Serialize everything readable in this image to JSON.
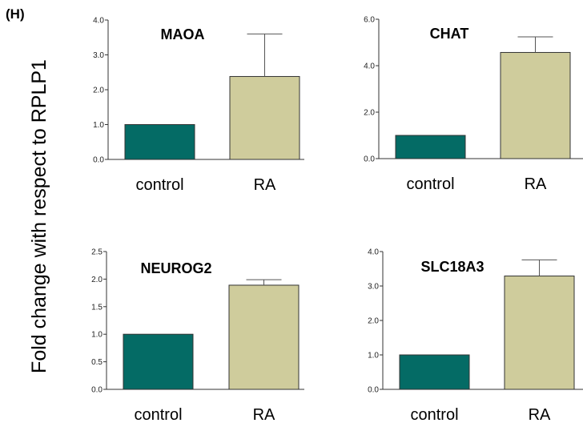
{
  "figure": {
    "panel_label": "(H)",
    "ylabel": "Fold change with respect to RPLP1"
  },
  "colors": {
    "control": "#046b65",
    "RA": "#cfcc9c",
    "bar_stroke": "#333333"
  },
  "chart_data": [
    {
      "type": "bar",
      "title": "MAOA",
      "categories": [
        "control",
        "RA"
      ],
      "values": [
        1.0,
        2.38
      ],
      "errors": [
        0,
        1.22
      ],
      "ylim": [
        0,
        4.0
      ],
      "yticks": [
        "0.0",
        "1.0",
        "2.0",
        "3.0",
        "4.0"
      ],
      "xlabel": "",
      "ylabel": ""
    },
    {
      "type": "bar",
      "title": "CHAT",
      "categories": [
        "control",
        "RA"
      ],
      "values": [
        1.0,
        4.57
      ],
      "errors": [
        0,
        0.67
      ],
      "ylim": [
        0,
        6.0
      ],
      "yticks": [
        "0.0",
        "2.0",
        "4.0",
        "6.0"
      ],
      "xlabel": "",
      "ylabel": ""
    },
    {
      "type": "bar",
      "title": "NEUROG2",
      "categories": [
        "control",
        "RA"
      ],
      "values": [
        1.0,
        1.89
      ],
      "errors": [
        0,
        0.1
      ],
      "ylim": [
        0,
        2.5
      ],
      "yticks": [
        "0.0",
        "0.5",
        "1.0",
        "1.5",
        "2.0",
        "2.5"
      ],
      "xlabel": "",
      "ylabel": ""
    },
    {
      "type": "bar",
      "title": "SLC18A3",
      "categories": [
        "control",
        "RA"
      ],
      "values": [
        1.0,
        3.29
      ],
      "errors": [
        0,
        0.47
      ],
      "ylim": [
        0,
        4.0
      ],
      "yticks": [
        "0.0",
        "1.0",
        "2.0",
        "3.0",
        "4.0"
      ],
      "xlabel": "",
      "ylabel": ""
    }
  ]
}
